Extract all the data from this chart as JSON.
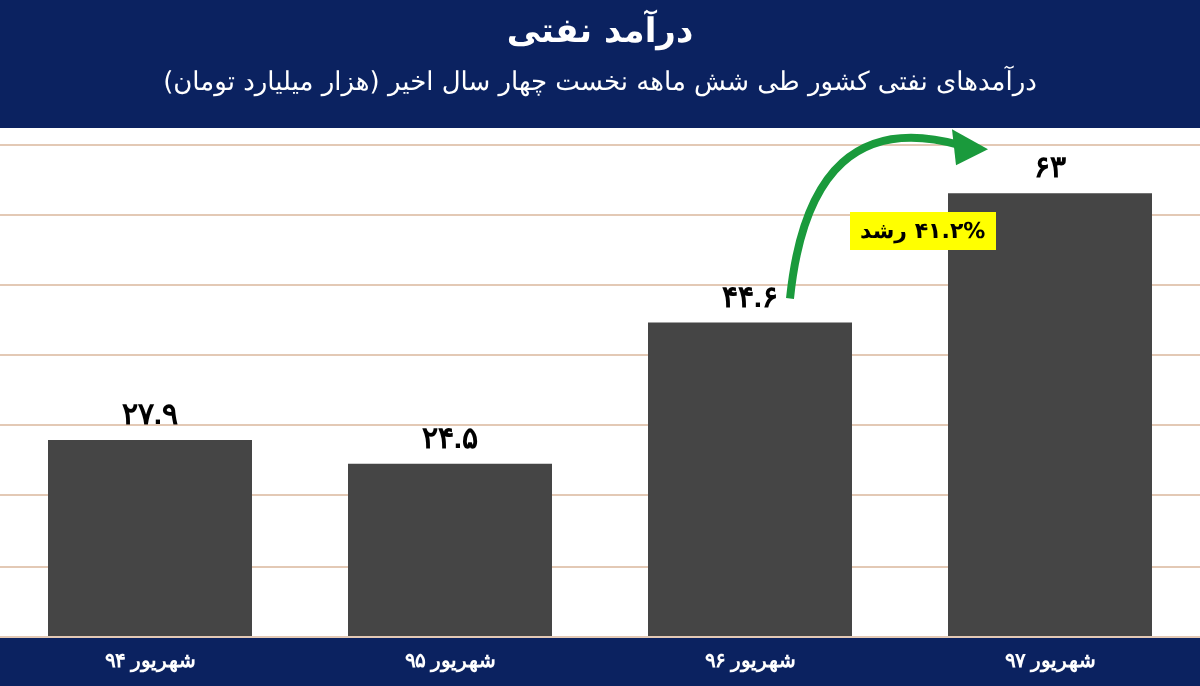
{
  "chart_data": {
    "type": "bar",
    "title": "درآمد نفتی",
    "subtitle": "درآمدهای نفتی کشور طی شش ماهه نخست چهار سال اخیر (هزار میلیارد تومان)",
    "categories": [
      "شهریور ۹۴",
      "شهریور ۹۵",
      "شهریور ۹۶",
      "شهریور ۹۷"
    ],
    "values": [
      27.9,
      24.5,
      44.6,
      63
    ],
    "value_labels": [
      "۲۷.۹",
      "۲۴.۵",
      "۴۴.۶",
      "۶۳"
    ],
    "color": "#454545",
    "ylim": [
      0,
      70
    ],
    "yticks": [
      {
        "value": 0,
        "label": null
      },
      {
        "value": 10,
        "label": null
      },
      {
        "value": 20,
        "label": null
      },
      {
        "value": 30,
        "label": null
      },
      {
        "value": 40,
        "label": null
      },
      {
        "value": 50,
        "label": null
      },
      {
        "value": 60,
        "label": null
      },
      {
        "value": 70,
        "label": null
      }
    ],
    "grid": "y",
    "tick_labels": "x",
    "annotations": [
      "۴۱.۲% رشد"
    ]
  }
}
